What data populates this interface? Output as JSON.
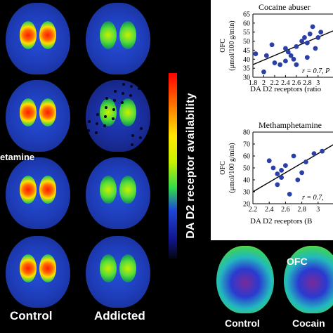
{
  "left_panel": {
    "row_label_partial": "etamine",
    "col_labels": [
      "Control",
      "Addicted"
    ],
    "colorbar_title": "DA D2 receptor availability",
    "colors": {
      "high": "#ff0000",
      "mid": "#ffe800",
      "green": "#32d94a",
      "low": "#1e46d8",
      "bg": "#000000"
    }
  },
  "right_panel": {
    "pet_labels": {
      "ofc": "OFC",
      "control": "Control",
      "cocaine_partial": "Cocain"
    }
  },
  "chart_data": [
    {
      "type": "scatter",
      "title": "Cocaine abuser",
      "ylabel_line1": "OFC",
      "ylabel_line2": "(μmol/100 g/min)",
      "xlabel": "DA D2 receptors (ratio",
      "annotation": "r = 0.7, ",
      "annotation_partial": "P",
      "xlim": [
        1.8,
        3.3
      ],
      "ylim": [
        30,
        65
      ],
      "xticks": [
        1.8,
        2.0,
        2.2,
        2.4,
        2.6,
        2.8,
        3.0
      ],
      "xtick_labels": [
        "1.8",
        "2",
        "2.2",
        "2.4",
        "2.6",
        "2.8",
        "3"
      ],
      "yticks": [
        30,
        35,
        40,
        45,
        50,
        55,
        60,
        65
      ],
      "x": [
        1.85,
        2.0,
        2.05,
        2.15,
        2.2,
        2.3,
        2.4,
        2.45,
        2.5,
        2.55,
        2.6,
        2.7,
        2.75,
        2.8,
        2.85,
        2.9,
        3.0,
        3.05,
        2.95,
        2.8,
        2.6,
        2.4
      ],
      "y": [
        43,
        33,
        42,
        48,
        38,
        37,
        46,
        44,
        42,
        40,
        47,
        50,
        52,
        49,
        54,
        58,
        52,
        55,
        46,
        41,
        37,
        39
      ],
      "fit": {
        "x": [
          1.8,
          3.3
        ],
        "y": [
          37,
          56
        ]
      }
    },
    {
      "type": "scatter",
      "title": "Methamphetamine",
      "ylabel_line1": "OFC",
      "ylabel_line2": "(μmol/100 g/min)",
      "xlabel": "DA D2 receptors (",
      "xlabel_partial": "B",
      "annotation": "r = 0.7, ",
      "xlim": [
        2.2,
        3.2
      ],
      "ylim": [
        20,
        80
      ],
      "xticks": [
        2.2,
        2.4,
        2.6,
        2.8,
        3.0
      ],
      "xtick_labels": [
        "2.2",
        "2.4",
        "2.6",
        "2.8",
        "3"
      ],
      "yticks": [
        20,
        30,
        40,
        50,
        60,
        70,
        80
      ],
      "x": [
        2.4,
        2.45,
        2.5,
        2.55,
        2.6,
        2.7,
        2.75,
        2.8,
        2.85,
        2.95,
        3.05,
        2.65,
        2.55,
        2.5
      ],
      "y": [
        56,
        50,
        45,
        48,
        52,
        60,
        40,
        46,
        55,
        62,
        64,
        28,
        42,
        36
      ],
      "fit": {
        "x": [
          2.2,
          3.2
        ],
        "y": [
          30,
          70
        ]
      }
    }
  ]
}
